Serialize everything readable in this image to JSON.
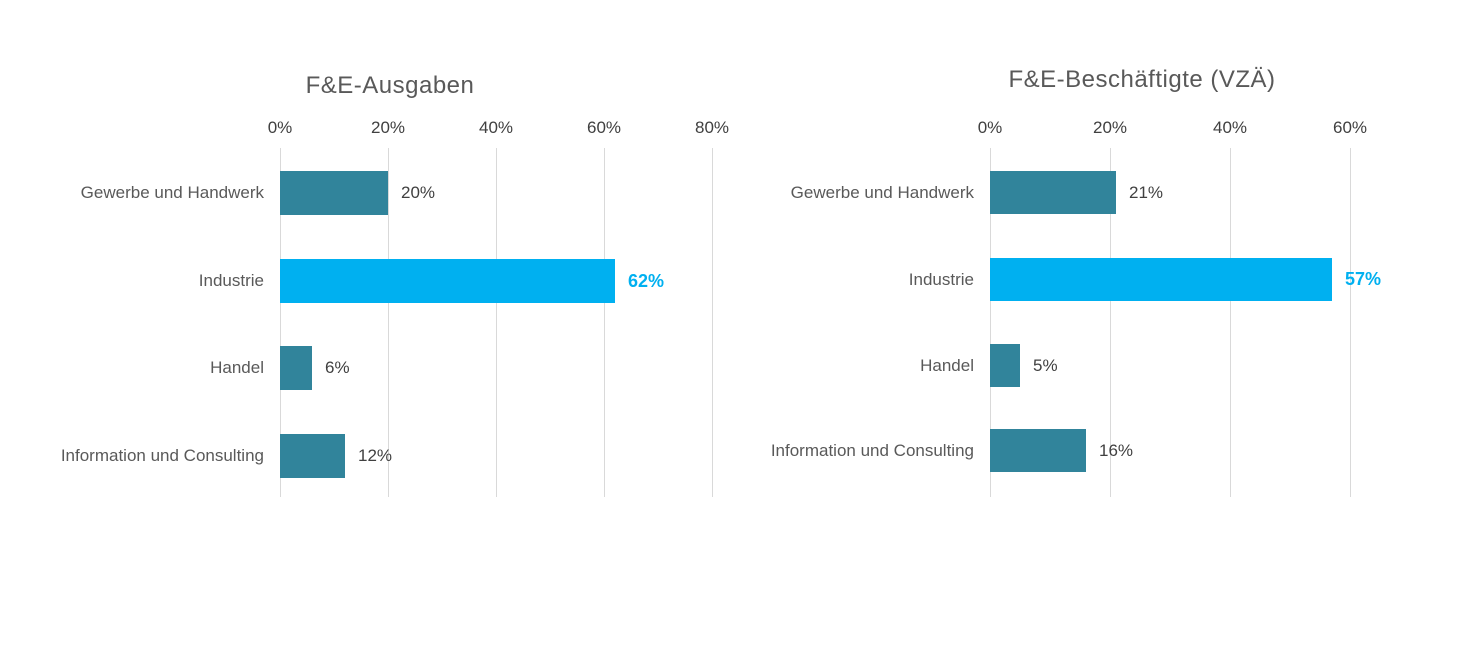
{
  "page": {
    "background": "#ffffff"
  },
  "colors": {
    "bar_teal": "#31849b",
    "bar_highlight_cyan": "#00b0f0",
    "gridline_gray": "#d9d9d9",
    "title_gray": "#595959",
    "label_dark_gray": "#404040"
  },
  "chart_data": [
    {
      "type": "bar",
      "orientation": "horizontal",
      "title": "F&E-Ausgaben",
      "categories": [
        "Gewerbe und Handwerk",
        "Industrie",
        "Handel",
        "Information und Consulting"
      ],
      "values": [
        20,
        62,
        6,
        12
      ],
      "value_labels": [
        "20%",
        "62%",
        "6%",
        "12%"
      ],
      "highlight_index": 1,
      "x_ticks": [
        "0%",
        "20%",
        "40%",
        "60%",
        "80%"
      ],
      "x_tick_values": [
        0,
        20,
        40,
        60,
        80
      ],
      "xlim": [
        0,
        80
      ],
      "grid": true,
      "legend": "none",
      "bar_color": "#31849b",
      "highlight_color": "#00b0f0"
    },
    {
      "type": "bar",
      "orientation": "horizontal",
      "title": "F&E-Beschäftigte (VZÄ)",
      "categories": [
        "Gewerbe und Handwerk",
        "Industrie",
        "Handel",
        "Information und Consulting"
      ],
      "values": [
        21,
        57,
        5,
        16
      ],
      "value_labels": [
        "21%",
        "57%",
        "5%",
        "16%"
      ],
      "highlight_index": 1,
      "x_ticks": [
        "0%",
        "20%",
        "40%",
        "60%"
      ],
      "x_tick_values": [
        0,
        20,
        40,
        60
      ],
      "xlim": [
        0,
        60
      ],
      "grid": true,
      "legend": "none",
      "bar_color": "#31849b",
      "highlight_color": "#00b0f0"
    }
  ]
}
